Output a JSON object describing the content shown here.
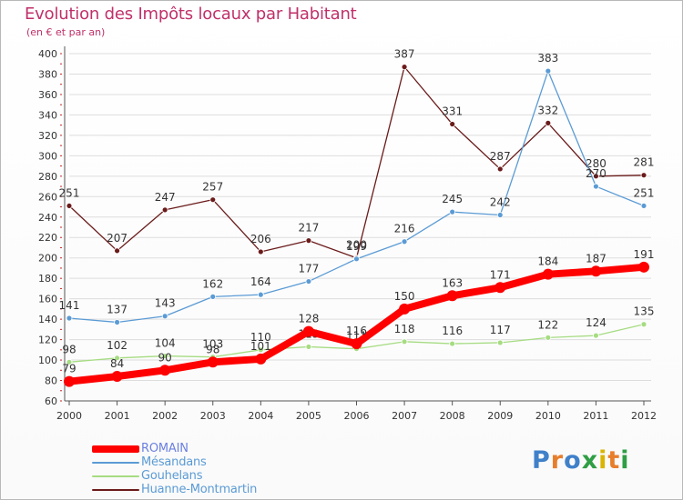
{
  "title": "Evolution des Impôts locaux par Habitant",
  "subtitle": "(en € et par an)",
  "logo": "Proxiti",
  "chart_data": {
    "type": "line",
    "title": "Evolution des Impôts locaux par Habitant",
    "subtitle": "(en € et par an)",
    "xlabel": "",
    "ylabel": "",
    "x": [
      2000,
      2001,
      2002,
      2003,
      2004,
      2005,
      2006,
      2007,
      2008,
      2009,
      2010,
      2011,
      2012
    ],
    "ylim": [
      60,
      400
    ],
    "yticks": [
      60,
      80,
      100,
      120,
      140,
      160,
      180,
      200,
      220,
      240,
      260,
      280,
      300,
      320,
      340,
      360,
      380,
      400
    ],
    "grid": "horizontal",
    "legend_position": "bottom-left",
    "series": [
      {
        "name": "Huanne-Montmartin",
        "color": "#6b1b1b",
        "values": [
          251,
          207,
          247,
          257,
          206,
          217,
          200,
          387,
          331,
          287,
          332,
          280,
          281
        ],
        "labels": [
          "251",
          "207",
          "247",
          "257",
          "206",
          "217",
          "200",
          "387",
          "331",
          "287",
          "332",
          "280",
          "281"
        ]
      },
      {
        "name": "Mésandans",
        "color": "#5b9bd5",
        "values": [
          141,
          137,
          143,
          162,
          164,
          177,
          199,
          216,
          245,
          242,
          383,
          270,
          251
        ],
        "labels": [
          "141",
          "137",
          "143",
          "162",
          "164",
          "177",
          "199",
          "216",
          "245",
          "242",
          "383",
          "270",
          "251"
        ]
      },
      {
        "name": "Gouhelans",
        "color": "#a6dc82",
        "values": [
          98,
          102,
          104,
          103,
          110,
          113,
          111,
          118,
          116,
          117,
          122,
          124,
          135
        ],
        "labels": [
          "98",
          "102",
          "104",
          "103",
          "110",
          "113",
          "111",
          "118",
          "116",
          "117",
          "122",
          "124",
          "135"
        ]
      },
      {
        "name": "ROMAIN",
        "color": "#ff0000",
        "values": [
          79,
          84,
          90,
          98,
          101,
          128,
          116,
          150,
          163,
          171,
          184,
          187,
          191
        ],
        "labels": [
          "79",
          "84",
          "90",
          "98",
          "101",
          "128",
          "116",
          "150",
          "163",
          "171",
          "184",
          "187",
          "191"
        ]
      }
    ],
    "legend_order": [
      "ROMAIN",
      "Mésandans",
      "Gouhelans",
      "Huanne-Montmartin"
    ]
  }
}
